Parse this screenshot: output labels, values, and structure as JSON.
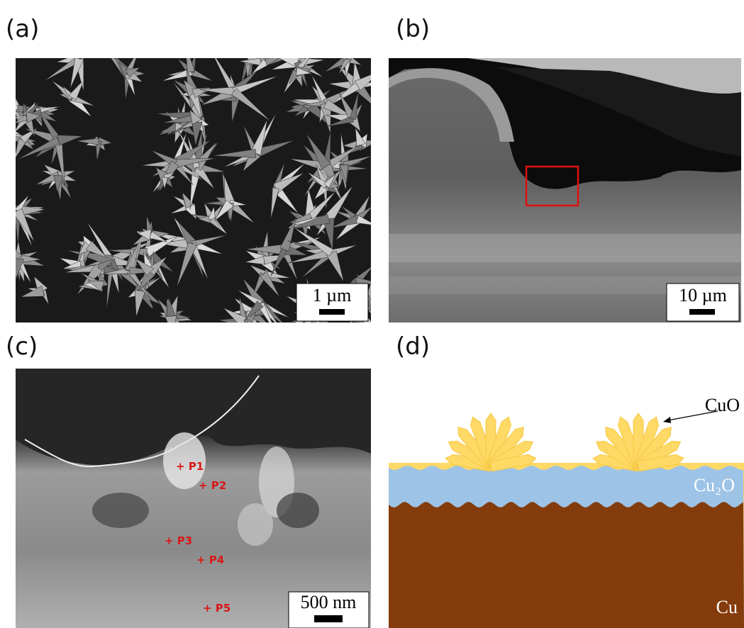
{
  "panels": [
    {
      "label": "(a)",
      "scale_bar": "1 µm"
    },
    {
      "label": "(b)",
      "scale_bar": "10 µm"
    },
    {
      "label": "(c)",
      "scale_bar": "500 nm",
      "points": [
        "+ P1",
        "+ P2",
        "+ P3",
        "+ P4",
        "+ P5"
      ]
    },
    {
      "label": "(d)",
      "layers": [
        "CuO",
        "Cu₂O",
        "Cu"
      ]
    }
  ]
}
